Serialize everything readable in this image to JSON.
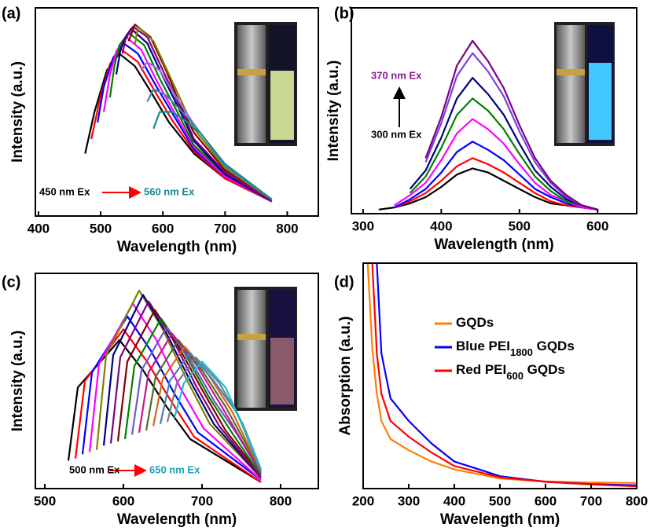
{
  "chart_data": [
    {
      "type": "line",
      "panel_label": "(a)",
      "xlabel": "Wavelength (nm)",
      "ylabel": "Intensity (a.u.)",
      "xlim": [
        395,
        850
      ],
      "ylim": [
        0,
        1
      ],
      "xticks": [
        400,
        500,
        600,
        700,
        800
      ],
      "annotations": [
        {
          "text": "450 nm Ex",
          "color": "#000000"
        },
        {
          "text": "560 nm Ex",
          "color": "#138a8a"
        }
      ],
      "series": [
        {
          "color": "#000000",
          "x": [
            475,
            490,
            510,
            530,
            555,
            580,
            610,
            650,
            700,
            775
          ],
          "values": [
            0.3,
            0.5,
            0.7,
            0.78,
            0.72,
            0.6,
            0.45,
            0.3,
            0.18,
            0.07
          ]
        },
        {
          "color": "#ff0000",
          "x": [
            485,
            500,
            515,
            533,
            560,
            585,
            615,
            650,
            700,
            775
          ],
          "values": [
            0.37,
            0.58,
            0.73,
            0.8,
            0.74,
            0.61,
            0.46,
            0.31,
            0.18,
            0.07
          ]
        },
        {
          "color": "#0000ff",
          "x": [
            495,
            505,
            520,
            537,
            560,
            590,
            620,
            650,
            700,
            775
          ],
          "values": [
            0.45,
            0.62,
            0.76,
            0.83,
            0.78,
            0.62,
            0.47,
            0.32,
            0.19,
            0.07
          ]
        },
        {
          "color": "#ff00ff",
          "x": [
            505,
            515,
            525,
            541,
            565,
            590,
            620,
            650,
            700,
            775
          ],
          "values": [
            0.5,
            0.68,
            0.79,
            0.86,
            0.8,
            0.65,
            0.49,
            0.33,
            0.19,
            0.07
          ]
        },
        {
          "color": "#008000",
          "x": [
            515,
            522,
            530,
            545,
            570,
            595,
            625,
            650,
            700,
            775
          ],
          "values": [
            0.57,
            0.72,
            0.82,
            0.88,
            0.82,
            0.66,
            0.49,
            0.34,
            0.2,
            0.07
          ]
        },
        {
          "color": "#000080",
          "x": [
            525,
            532,
            540,
            549,
            575,
            600,
            625,
            650,
            700,
            775
          ],
          "values": [
            0.68,
            0.8,
            0.86,
            0.9,
            0.83,
            0.67,
            0.52,
            0.36,
            0.2,
            0.07
          ]
        },
        {
          "color": "#800080",
          "x": [
            535,
            540,
            552,
            575,
            600,
            625,
            650,
            700,
            775
          ],
          "values": [
            0.78,
            0.85,
            0.91,
            0.86,
            0.7,
            0.54,
            0.37,
            0.21,
            0.07
          ]
        },
        {
          "color": "#800000",
          "x": [
            545,
            555,
            580,
            605,
            630,
            650,
            700,
            775
          ],
          "values": [
            0.84,
            0.92,
            0.86,
            0.7,
            0.52,
            0.4,
            0.22,
            0.08
          ]
        },
        {
          "color": "#808000",
          "x": [
            555,
            560,
            585,
            610,
            630,
            650,
            700,
            775
          ],
          "values": [
            0.82,
            0.91,
            0.84,
            0.68,
            0.55,
            0.42,
            0.23,
            0.08
          ]
        },
        {
          "color": "#9370db",
          "x": [
            565,
            575,
            595,
            615,
            650,
            700,
            775
          ],
          "values": [
            0.7,
            0.74,
            0.7,
            0.6,
            0.44,
            0.24,
            0.08
          ]
        },
        {
          "color": "#4682b4",
          "x": [
            575,
            585,
            605,
            625,
            650,
            700,
            775
          ],
          "values": [
            0.55,
            0.61,
            0.58,
            0.52,
            0.44,
            0.24,
            0.08
          ]
        },
        {
          "color": "#138a8a",
          "x": [
            585,
            595,
            615,
            635,
            660,
            700,
            775
          ],
          "values": [
            0.42,
            0.5,
            0.5,
            0.46,
            0.4,
            0.25,
            0.08
          ]
        }
      ]
    },
    {
      "type": "line",
      "panel_label": "(b)",
      "xlabel": "Wavelength (nm)",
      "ylabel": "Intensity (a.u.)",
      "xlim": [
        285,
        650
      ],
      "ylim": [
        0,
        1
      ],
      "xticks": [
        300,
        400,
        500,
        600
      ],
      "annotations": [
        {
          "text": "370 nm Ex",
          "color": "#8b1a8b"
        },
        {
          "text": "300 nm Ex",
          "color": "#000000"
        }
      ],
      "x": [
        320,
        340,
        360,
        380,
        400,
        420,
        440,
        460,
        480,
        500,
        520,
        540,
        560,
        580,
        600
      ],
      "series": [
        {
          "color": "#000000",
          "values": [
            0.02,
            0.03,
            0.05,
            0.08,
            0.13,
            0.19,
            0.22,
            0.2,
            0.16,
            0.12,
            0.08,
            0.05,
            0.04,
            0.03,
            0.02
          ]
        },
        {
          "color": "#ff0000",
          "values": [
            null,
            0.03,
            0.06,
            0.1,
            0.16,
            0.23,
            0.27,
            0.24,
            0.2,
            0.15,
            0.1,
            0.06,
            0.04,
            0.03,
            0.02
          ]
        },
        {
          "color": "#0000ff",
          "values": [
            null,
            0.03,
            0.07,
            0.12,
            0.2,
            0.3,
            0.35,
            0.31,
            0.26,
            0.19,
            0.12,
            0.08,
            0.05,
            0.03,
            0.02
          ]
        },
        {
          "color": "#ff00ff",
          "values": [
            null,
            0.04,
            0.09,
            0.15,
            0.26,
            0.39,
            0.46,
            0.41,
            0.34,
            0.24,
            0.15,
            0.09,
            0.06,
            0.03,
            0.02
          ]
        },
        {
          "color": "#008000",
          "values": [
            null,
            null,
            0.1,
            0.18,
            0.32,
            0.48,
            0.56,
            0.5,
            0.41,
            0.29,
            0.18,
            0.11,
            0.06,
            0.04,
            0.02
          ]
        },
        {
          "color": "#000080",
          "values": [
            null,
            null,
            0.12,
            0.21,
            0.37,
            0.56,
            0.66,
            0.58,
            0.48,
            0.34,
            0.21,
            0.13,
            0.07,
            0.04,
            0.02
          ]
        },
        {
          "color": "#7b3fe4",
          "values": [
            null,
            null,
            null,
            0.25,
            0.44,
            0.67,
            0.78,
            0.69,
            0.57,
            0.4,
            0.25,
            0.15,
            0.08,
            0.04,
            0.02
          ]
        },
        {
          "color": "#800080",
          "values": [
            null,
            null,
            null,
            0.27,
            0.47,
            0.72,
            0.84,
            0.74,
            0.61,
            0.43,
            0.27,
            0.16,
            0.09,
            0.04,
            0.02
          ]
        }
      ]
    },
    {
      "type": "line",
      "panel_label": "(c)",
      "xlabel": "Wavelength (nm)",
      "ylabel": "Intensity (a.u.)",
      "xlim": [
        488,
        848
      ],
      "ylim": [
        0,
        1
      ],
      "xticks": [
        500,
        600,
        700,
        800
      ],
      "annotations": [
        {
          "text": "500 nm Ex",
          "color": "#000000"
        },
        {
          "text": "650 nm Ex",
          "color": "#17a2b8"
        }
      ],
      "series": [
        {
          "color": "#000000",
          "x": [
            530,
            542,
            595,
            625,
            655,
            685,
            775
          ],
          "values": [
            0.13,
            0.47,
            0.69,
            0.55,
            0.38,
            0.23,
            0.03
          ]
        },
        {
          "color": "#ff0000",
          "x": [
            539,
            551,
            600,
            630,
            660,
            690,
            775
          ],
          "values": [
            0.14,
            0.5,
            0.74,
            0.59,
            0.41,
            0.24,
            0.03
          ]
        },
        {
          "color": "#0000ff",
          "x": [
            548,
            560,
            605,
            635,
            665,
            695,
            775
          ],
          "values": [
            0.16,
            0.54,
            0.8,
            0.64,
            0.44,
            0.26,
            0.04
          ]
        },
        {
          "color": "#ff00ff",
          "x": [
            557,
            569,
            612,
            642,
            672,
            702,
            775
          ],
          "values": [
            0.17,
            0.58,
            0.86,
            0.69,
            0.47,
            0.28,
            0.04
          ]
        },
        {
          "color": "#808000",
          "x": [
            566,
            578,
            620,
            650,
            680,
            710,
            775
          ],
          "values": [
            0.18,
            0.62,
            0.92,
            0.74,
            0.51,
            0.3,
            0.05
          ]
        },
        {
          "color": "#000080",
          "x": [
            575,
            587,
            625,
            655,
            685,
            715,
            775
          ],
          "values": [
            0.2,
            0.62,
            0.9,
            0.72,
            0.5,
            0.3,
            0.05
          ]
        },
        {
          "color": "#800080",
          "x": [
            584,
            596,
            632,
            662,
            692,
            722,
            775
          ],
          "values": [
            0.21,
            0.61,
            0.87,
            0.7,
            0.48,
            0.29,
            0.05
          ]
        },
        {
          "color": "#800000",
          "x": [
            593,
            605,
            640,
            670,
            700,
            730,
            775
          ],
          "values": [
            0.22,
            0.59,
            0.83,
            0.66,
            0.46,
            0.27,
            0.06
          ]
        },
        {
          "color": "#008000",
          "x": [
            602,
            614,
            648,
            678,
            708,
            738,
            775
          ],
          "values": [
            0.23,
            0.57,
            0.79,
            0.63,
            0.43,
            0.26,
            0.06
          ]
        },
        {
          "color": "#6a5acd",
          "x": [
            611,
            623,
            655,
            685,
            715,
            745,
            775
          ],
          "values": [
            0.25,
            0.55,
            0.75,
            0.6,
            0.41,
            0.25,
            0.07
          ]
        },
        {
          "color": "#c71585",
          "x": [
            620,
            632,
            662,
            692,
            722,
            775
          ],
          "values": [
            0.26,
            0.54,
            0.72,
            0.58,
            0.4,
            0.07
          ]
        },
        {
          "color": "#556b2f",
          "x": [
            629,
            641,
            670,
            700,
            730,
            775
          ],
          "values": [
            0.27,
            0.52,
            0.69,
            0.55,
            0.38,
            0.08
          ]
        },
        {
          "color": "#d2691e",
          "x": [
            638,
            650,
            678,
            708,
            738,
            775
          ],
          "values": [
            0.29,
            0.51,
            0.66,
            0.53,
            0.36,
            0.08
          ]
        },
        {
          "color": "#4682b4",
          "x": [
            647,
            659,
            685,
            715,
            745,
            775
          ],
          "values": [
            0.3,
            0.5,
            0.63,
            0.5,
            0.35,
            0.08
          ]
        },
        {
          "color": "#708090",
          "x": [
            656,
            668,
            692,
            722,
            752,
            775
          ],
          "values": [
            0.31,
            0.49,
            0.61,
            0.49,
            0.3,
            0.09
          ]
        },
        {
          "color": "#17becf",
          "x": [
            665,
            677,
            700,
            730,
            760,
            775
          ],
          "values": [
            0.33,
            0.49,
            0.59,
            0.47,
            0.22,
            0.09
          ]
        }
      ]
    },
    {
      "type": "line",
      "panel_label": "(d)",
      "xlabel": "Wavelength (nm)",
      "ylabel": "Absorption (a.u.)",
      "xlim": [
        200,
        800
      ],
      "ylim": [
        0,
        1
      ],
      "xticks": [
        200,
        300,
        400,
        500,
        600,
        700,
        800
      ],
      "x": [
        210,
        220,
        230,
        240,
        260,
        300,
        350,
        400,
        500,
        600,
        700,
        800
      ],
      "series": [
        {
          "name": "GQDs",
          "color": "#ff8000",
          "values": [
            1.0,
            0.62,
            0.42,
            0.3,
            0.22,
            0.17,
            0.12,
            0.085,
            0.045,
            0.032,
            0.027,
            0.025
          ]
        },
        {
          "name": "Blue PEI1800 GQDs",
          "color": "#0000ff",
          "values": [
            null,
            null,
            1.0,
            0.6,
            0.4,
            0.3,
            0.2,
            0.12,
            0.055,
            0.03,
            0.02,
            0.015
          ]
        },
        {
          "name": "Red PEI600 GQDs",
          "color": "#ff0000",
          "values": [
            null,
            1.0,
            0.6,
            0.42,
            0.3,
            0.23,
            0.16,
            0.1,
            0.05,
            0.03,
            0.018,
            0.01
          ]
        }
      ]
    }
  ]
}
